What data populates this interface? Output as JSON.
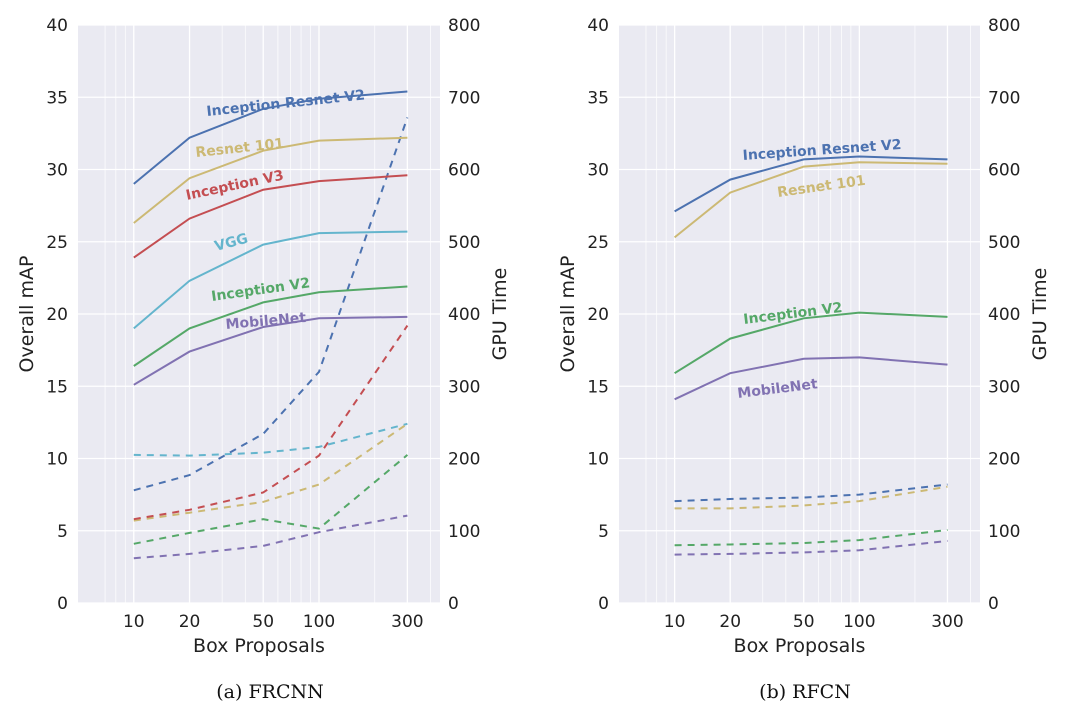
{
  "chart_data": [
    {
      "type": "line",
      "caption": "(a) FRCNN",
      "xlabel": "Box Proposals",
      "ylabel": "Overall mAP",
      "y2label": "GPU Time",
      "x_scale": "log",
      "x": [
        10,
        20,
        50,
        100,
        300
      ],
      "x_tick_labels": [
        "10",
        "20",
        "50",
        "100",
        "300"
      ],
      "ylim": [
        0,
        40
      ],
      "y_ticks": [
        0,
        5,
        10,
        15,
        20,
        25,
        30,
        35,
        40
      ],
      "y2lim": [
        0,
        800
      ],
      "y2_ticks": [
        0,
        100,
        200,
        300,
        400,
        500,
        600,
        700,
        800
      ],
      "grid": true,
      "series": [
        {
          "name": "Inception Resnet V2",
          "color": "#4c72b0",
          "map": [
            29.0,
            32.2,
            34.2,
            34.9,
            35.4
          ],
          "gpu_time": [
            156,
            177,
            234,
            320,
            672
          ]
        },
        {
          "name": "Resnet 101",
          "color": "#ccb974",
          "map": [
            26.3,
            29.4,
            31.3,
            32.0,
            32.2
          ],
          "gpu_time": [
            114,
            125,
            140,
            164,
            248
          ]
        },
        {
          "name": "Inception V3",
          "color": "#c44e52",
          "map": [
            23.9,
            26.6,
            28.6,
            29.2,
            29.6
          ],
          "gpu_time": [
            116,
            129,
            153,
            204,
            384
          ]
        },
        {
          "name": "VGG",
          "color": "#64b5cd",
          "map": [
            19.0,
            22.3,
            24.8,
            25.6,
            25.7
          ],
          "gpu_time": [
            205,
            204,
            208,
            216,
            248
          ]
        },
        {
          "name": "Inception V2",
          "color": "#55a868",
          "map": [
            16.4,
            19.0,
            20.8,
            21.5,
            21.9
          ],
          "gpu_time": [
            82,
            97,
            116,
            103,
            205
          ]
        },
        {
          "name": "MobileNet",
          "color": "#8172b2",
          "map": [
            15.1,
            17.4,
            19.1,
            19.7,
            19.8
          ],
          "gpu_time": [
            62,
            68,
            79,
            98,
            121
          ]
        }
      ]
    },
    {
      "type": "line",
      "caption": "(b) RFCN",
      "xlabel": "Box Proposals",
      "ylabel": "Overall mAP",
      "y2label": "GPU Time",
      "x_scale": "log",
      "x": [
        10,
        20,
        50,
        100,
        300
      ],
      "x_tick_labels": [
        "10",
        "20",
        "50",
        "100",
        "300"
      ],
      "ylim": [
        0,
        40
      ],
      "y_ticks": [
        0,
        5,
        10,
        15,
        20,
        25,
        30,
        35,
        40
      ],
      "y2lim": [
        0,
        800
      ],
      "y2_ticks": [
        0,
        100,
        200,
        300,
        400,
        500,
        600,
        700,
        800
      ],
      "grid": true,
      "series": [
        {
          "name": "Inception Resnet V2",
          "color": "#4c72b0",
          "map": [
            27.1,
            29.3,
            30.7,
            30.9,
            30.7
          ],
          "gpu_time": [
            141,
            144,
            146,
            150,
            164
          ]
        },
        {
          "name": "Resnet 101",
          "color": "#ccb974",
          "map": [
            25.3,
            28.4,
            30.2,
            30.5,
            30.4
          ],
          "gpu_time": [
            131,
            131,
            135,
            141,
            161
          ]
        },
        {
          "name": "Inception V2",
          "color": "#55a868",
          "map": [
            15.9,
            18.3,
            19.7,
            20.1,
            19.8
          ],
          "gpu_time": [
            80,
            81,
            83,
            87,
            101
          ]
        },
        {
          "name": "MobileNet",
          "color": "#8172b2",
          "map": [
            14.1,
            15.9,
            16.9,
            17.0,
            16.5
          ],
          "gpu_time": [
            67,
            68,
            70,
            73,
            86
          ]
        }
      ]
    }
  ]
}
